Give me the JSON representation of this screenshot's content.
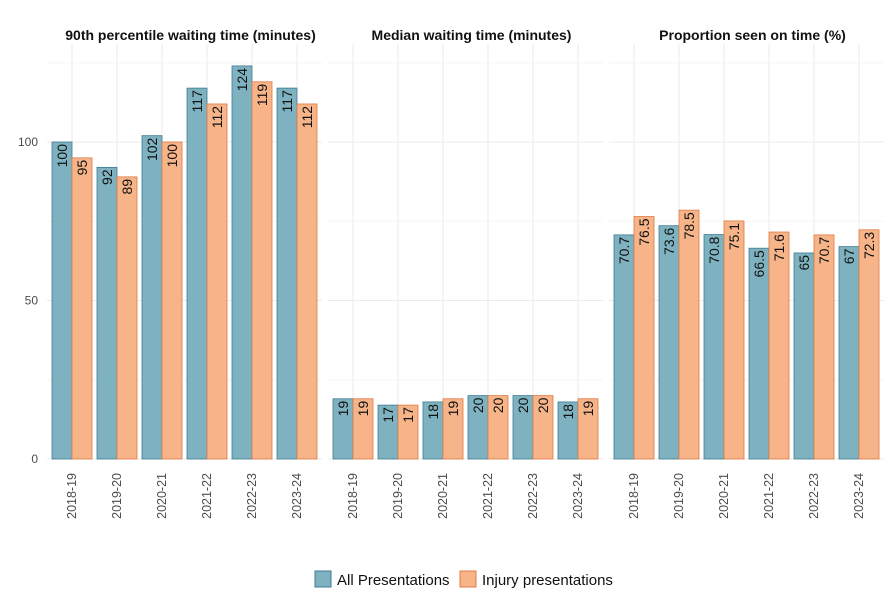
{
  "colors": {
    "all": "#7fb2c1",
    "all_stroke": "#3d7c92",
    "injury": "#f6b488",
    "injury_stroke": "#e07a45",
    "grid": "#ebebeb"
  },
  "chart_data": [
    {
      "type": "bar",
      "title": "90th percentile waiting time (minutes)",
      "categories": [
        "2018-19",
        "2019-20",
        "2020-21",
        "2021-22",
        "2022-23",
        "2023-24"
      ],
      "series": [
        {
          "name": "All Presentations",
          "values": [
            100,
            92,
            102,
            117,
            124,
            117
          ],
          "labels": [
            "100",
            "92",
            "102",
            "117",
            "124",
            "117"
          ]
        },
        {
          "name": "Injury presentations",
          "values": [
            95,
            89,
            100,
            112,
            119,
            112
          ],
          "labels": [
            "95",
            "89",
            "100",
            "112",
            "119",
            "112"
          ]
        }
      ],
      "ylim": [
        0,
        130
      ],
      "yticks": [
        "0",
        "50",
        "100"
      ],
      "grid": true
    },
    {
      "type": "bar",
      "title": "Median waiting time (minutes)",
      "categories": [
        "2018-19",
        "2019-20",
        "2020-21",
        "2021-22",
        "2022-23",
        "2023-24"
      ],
      "series": [
        {
          "name": "All Presentations",
          "values": [
            19,
            17,
            18,
            20,
            20,
            18
          ],
          "labels": [
            "19",
            "17",
            "18",
            "20",
            "20",
            "18"
          ]
        },
        {
          "name": "Injury presentations",
          "values": [
            19,
            17,
            19,
            20,
            20,
            19
          ],
          "labels": [
            "19",
            "17",
            "19",
            "20",
            "20",
            "19"
          ]
        }
      ],
      "ylim": [
        0,
        130
      ],
      "grid": true
    },
    {
      "type": "bar",
      "title": "Proportion seen on time (%)",
      "categories": [
        "2018-19",
        "2019-20",
        "2020-21",
        "2021-22",
        "2022-23",
        "2023-24"
      ],
      "series": [
        {
          "name": "All Presentations",
          "values": [
            70.7,
            73.6,
            70.8,
            66.5,
            65,
            67
          ],
          "labels": [
            "70.7",
            "73.6",
            "70.8",
            "66.5",
            "65",
            "67"
          ]
        },
        {
          "name": "Injury presentations",
          "values": [
            76.5,
            78.5,
            75.1,
            71.6,
            70.7,
            72.3
          ],
          "labels": [
            "76.5",
            "78.5",
            "75.1",
            "71.6",
            "70.7",
            "72.3"
          ]
        }
      ],
      "ylim": [
        0,
        130
      ],
      "grid": true
    }
  ],
  "legend": {
    "position": "bottom",
    "items": [
      "All Presentations",
      "Injury presentations"
    ]
  }
}
